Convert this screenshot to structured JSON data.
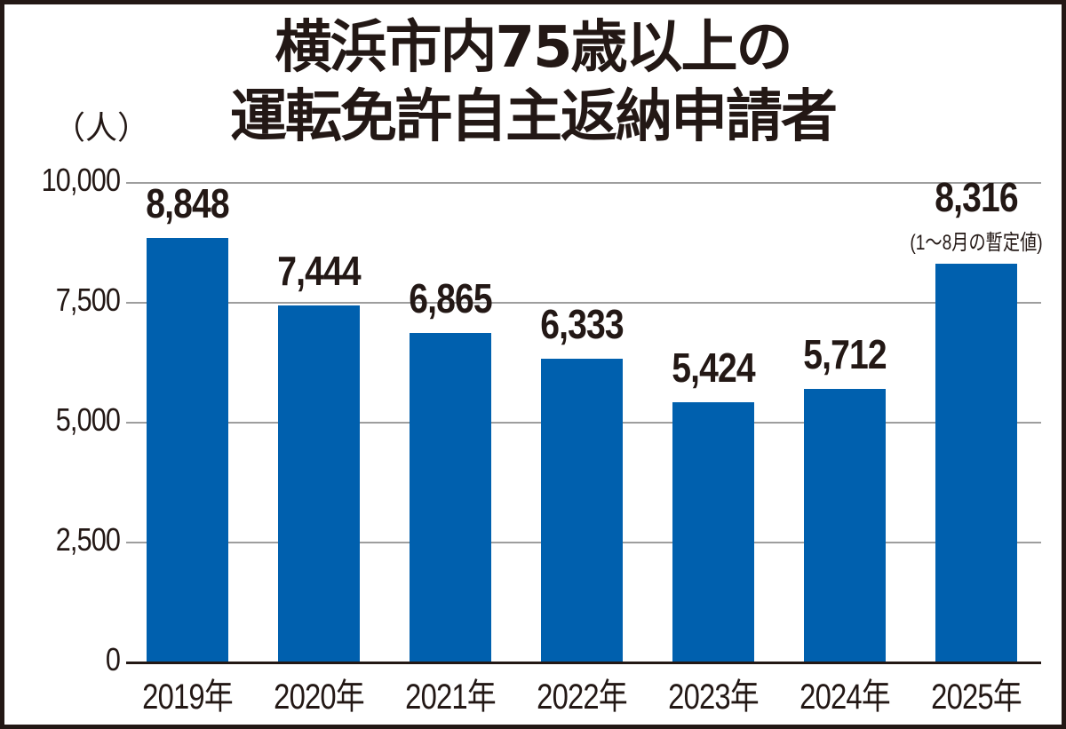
{
  "chart_data": {
    "type": "bar",
    "title": "横浜市内75歳以上の運転免許自主返納申請者",
    "title_lines": [
      "横浜市内75歳以上の",
      "運転免許自主返納申請者"
    ],
    "ylabel": "（人）",
    "xlabel": "",
    "categories": [
      "2019年",
      "2020年",
      "2021年",
      "2022年",
      "2023年",
      "2024年",
      "2025年"
    ],
    "values": [
      8848,
      7444,
      6865,
      6333,
      5424,
      5712,
      8316
    ],
    "value_labels": [
      "8,848",
      "7,444",
      "6,865",
      "6,333",
      "5,424",
      "5,712",
      "8,316"
    ],
    "annotations": [
      {
        "category": "2025年",
        "text": "(1〜8月の暫定値)"
      }
    ],
    "yticks": [
      "0",
      "2,500",
      "5,000",
      "7,500",
      "10,000"
    ],
    "ylim": [
      0,
      10000
    ],
    "grid": true,
    "legend": "none",
    "bar_color": "#0060ae"
  }
}
